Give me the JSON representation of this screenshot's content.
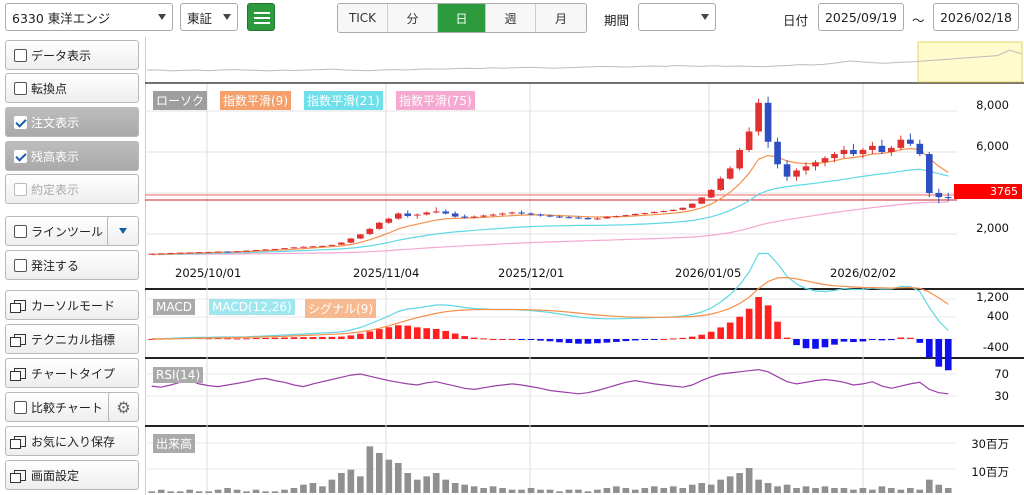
{
  "toolbar": {
    "stock_select": "6330 東洋エンジ",
    "market_select": "東証",
    "intervals": [
      {
        "label": "TICK",
        "active": false
      },
      {
        "label": "分",
        "active": false
      },
      {
        "label": "日",
        "active": true
      },
      {
        "label": "週",
        "active": false
      },
      {
        "label": "月",
        "active": false
      }
    ],
    "period_label": "期間",
    "period_value": "",
    "date_label": "日付",
    "date_from": "2025/09/19",
    "tilde": "～",
    "date_to": "2026/02/18",
    "accent_color": "#2e9a3e"
  },
  "sidebar": {
    "items": [
      {
        "label": "データ表示",
        "type": "checkbox",
        "checked": false
      },
      {
        "label": "転換点",
        "type": "checkbox",
        "checked": false
      },
      {
        "label": "注文表示",
        "type": "checkbox",
        "checked": true
      },
      {
        "label": "残高表示",
        "type": "checkbox",
        "checked": true
      },
      {
        "label": "約定表示",
        "type": "checkbox",
        "checked": false,
        "disabled": true
      },
      {
        "label": "ラインツール",
        "type": "checkbox",
        "checked": false
      },
      {
        "label": "発注する",
        "type": "checkbox",
        "checked": false
      },
      {
        "label": "カーソルモード",
        "type": "window"
      },
      {
        "label": "テクニカル指標",
        "type": "window"
      },
      {
        "label": "チャートタイプ",
        "type": "window"
      },
      {
        "label": "比較チャート",
        "type": "checkbox",
        "checked": false
      },
      {
        "label": "お気に入り保存",
        "type": "window"
      },
      {
        "label": "画面設定",
        "type": "window"
      }
    ]
  },
  "main_panel": {
    "legend": [
      "ローソク",
      "指数平滑(9)",
      "指数平滑(21)",
      "指数平滑(75)"
    ],
    "legend_colors": [
      "#9e9e9e",
      "#f5a06a",
      "#6fe0ea",
      "#f5a8d0"
    ],
    "y_ticks": [
      "8,000",
      "6,000",
      "2,000"
    ],
    "x_ticks": [
      "2025/10/01",
      "2025/11/04",
      "2025/12/01",
      "2026/01/05",
      "2026/02/02"
    ],
    "price_tag": "3765",
    "price_tag_color": "#ff0000"
  },
  "macd_panel": {
    "legend": [
      "MACD",
      "MACD(12,26)",
      "シグナル(9)"
    ],
    "y_ticks": [
      "1,200",
      "400",
      "-400"
    ]
  },
  "rsi_panel": {
    "legend": [
      "RSI(14)"
    ],
    "y_ticks": [
      "70",
      "30"
    ]
  },
  "volume_panel": {
    "legend": [
      "出来高"
    ],
    "y_ticks": [
      "30百万",
      "10百万"
    ]
  },
  "chart_data": {
    "type": "candlestick",
    "overview_line": [
      0.5,
      0.5,
      0.45,
      0.48,
      0.5,
      0.46,
      0.5,
      0.52,
      0.5,
      0.48,
      0.45,
      0.5,
      0.47,
      0.5,
      0.52,
      0.55,
      0.5,
      0.48,
      0.46,
      0.5,
      0.52,
      0.5,
      0.54,
      0.56,
      0.55,
      0.58,
      0.6,
      0.58,
      0.62,
      0.6,
      0.63,
      0.65,
      0.62,
      0.6,
      0.62,
      0.65,
      0.67,
      0.7,
      0.68,
      0.66,
      0.7,
      0.72,
      0.7,
      0.75,
      0.72,
      0.7,
      0.74,
      0.7,
      0.72,
      0.7,
      0.68,
      0.72,
      0.75,
      0.8,
      0.78,
      0.82,
      0.9,
      1.0,
      0.95,
      0.9,
      0.88,
      0.92,
      0.95,
      1.0,
      1.05,
      1.1,
      1.15,
      1.2,
      1.25,
      1.3,
      1.6,
      1.4
    ],
    "candles": [
      [
        1010,
        1040,
        990,
        1040
      ],
      [
        1040,
        1060,
        1030,
        1055
      ],
      [
        1060,
        1080,
        1050,
        1075
      ],
      [
        1080,
        1100,
        1060,
        1090
      ],
      [
        1090,
        1110,
        1070,
        1100
      ],
      [
        1100,
        1120,
        1085,
        1110
      ],
      [
        1110,
        1130,
        1100,
        1115
      ],
      [
        1115,
        1150,
        1110,
        1145
      ],
      [
        1145,
        1160,
        1120,
        1130
      ],
      [
        1130,
        1170,
        1120,
        1160
      ],
      [
        1160,
        1200,
        1150,
        1190
      ],
      [
        1190,
        1230,
        1180,
        1220
      ],
      [
        1220,
        1260,
        1200,
        1250
      ],
      [
        1250,
        1280,
        1230,
        1270
      ],
      [
        1270,
        1320,
        1260,
        1310
      ],
      [
        1310,
        1360,
        1300,
        1350
      ],
      [
        1350,
        1400,
        1340,
        1380
      ],
      [
        1380,
        1410,
        1350,
        1400
      ],
      [
        1400,
        1430,
        1380,
        1420
      ],
      [
        1420,
        1480,
        1400,
        1470
      ],
      [
        1480,
        1600,
        1470,
        1580
      ],
      [
        1580,
        1800,
        1550,
        1780
      ],
      [
        1780,
        2000,
        1750,
        1980
      ],
      [
        2000,
        2300,
        1950,
        2250
      ],
      [
        2250,
        2600,
        2200,
        2550
      ],
      [
        2550,
        2800,
        2500,
        2750
      ],
      [
        2750,
        3050,
        2700,
        3000
      ],
      [
        3000,
        3150,
        2800,
        2880
      ],
      [
        2900,
        3000,
        2750,
        2950
      ],
      [
        2950,
        3100,
        2900,
        3050
      ],
      [
        3050,
        3300,
        3000,
        3100
      ],
      [
        3100,
        3200,
        2950,
        3000
      ],
      [
        3000,
        3100,
        2800,
        2850
      ],
      [
        2850,
        2950,
        2750,
        2800
      ],
      [
        2800,
        2900,
        2750,
        2850
      ],
      [
        2850,
        2950,
        2800,
        2900
      ],
      [
        2900,
        3000,
        2850,
        2950
      ],
      [
        2950,
        3050,
        2900,
        3000
      ],
      [
        3000,
        3100,
        2950,
        3050
      ],
      [
        3050,
        3150,
        2950,
        3000
      ],
      [
        3000,
        3050,
        2900,
        2950
      ],
      [
        2950,
        3000,
        2850,
        2900
      ],
      [
        2900,
        2950,
        2820,
        2850
      ],
      [
        2850,
        2900,
        2780,
        2820
      ],
      [
        2820,
        2880,
        2760,
        2800
      ],
      [
        2800,
        2850,
        2740,
        2780
      ],
      [
        2780,
        2820,
        2700,
        2720
      ],
      [
        2720,
        2800,
        2680,
        2760
      ],
      [
        2760,
        2860,
        2740,
        2840
      ],
      [
        2840,
        2900,
        2800,
        2870
      ],
      [
        2870,
        2950,
        2850,
        2920
      ],
      [
        2920,
        3000,
        2900,
        2980
      ],
      [
        2980,
        3050,
        2950,
        3020
      ],
      [
        3020,
        3100,
        3000,
        3080
      ],
      [
        3080,
        3150,
        3050,
        3120
      ],
      [
        3120,
        3200,
        3100,
        3180
      ],
      [
        3180,
        3300,
        3150,
        3280
      ],
      [
        3280,
        3500,
        3250,
        3480
      ],
      [
        3480,
        3800,
        3450,
        3780
      ],
      [
        3780,
        4200,
        3750,
        4150
      ],
      [
        4150,
        4800,
        4100,
        4700
      ],
      [
        4700,
        5300,
        4650,
        5200
      ],
      [
        5200,
        6200,
        5100,
        6100
      ],
      [
        6100,
        7200,
        6000,
        7000
      ],
      [
        7000,
        8600,
        6800,
        8400
      ],
      [
        8400,
        8700,
        6200,
        6500
      ],
      [
        6500,
        6700,
        5200,
        5400
      ],
      [
        5400,
        5600,
        4600,
        4800
      ],
      [
        4800,
        5200,
        4600,
        5100
      ],
      [
        5100,
        5500,
        4900,
        5300
      ],
      [
        5300,
        5600,
        5100,
        5500
      ],
      [
        5500,
        5800,
        5300,
        5700
      ],
      [
        5700,
        6000,
        5500,
        5900
      ],
      [
        5900,
        6300,
        5700,
        6100
      ],
      [
        6100,
        6400,
        5800,
        5900
      ],
      [
        5900,
        6200,
        5700,
        6100
      ],
      [
        6100,
        6500,
        5900,
        6300
      ],
      [
        6300,
        6600,
        5900,
        6000
      ],
      [
        6000,
        6300,
        5800,
        6200
      ],
      [
        6200,
        6800,
        6100,
        6600
      ],
      [
        6600,
        6900,
        6300,
        6400
      ],
      [
        6400,
        6600,
        5800,
        5900
      ],
      [
        5900,
        6000,
        3800,
        4000
      ],
      [
        4000,
        4200,
        3500,
        3800
      ],
      [
        3800,
        4000,
        3600,
        3765
      ]
    ],
    "ema9": [
      1000,
      1015,
      1030,
      1050,
      1065,
      1080,
      1090,
      1105,
      1115,
      1125,
      1140,
      1160,
      1180,
      1205,
      1230,
      1260,
      1290,
      1320,
      1350,
      1380,
      1420,
      1490,
      1590,
      1720,
      1880,
      2050,
      2250,
      2380,
      2480,
      2580,
      2680,
      2740,
      2760,
      2770,
      2790,
      2810,
      2840,
      2870,
      2900,
      2920,
      2930,
      2930,
      2920,
      2900,
      2880,
      2860,
      2840,
      2830,
      2835,
      2845,
      2860,
      2885,
      2910,
      2940,
      2975,
      3015,
      3070,
      3150,
      3280,
      3460,
      3720,
      4040,
      4450,
      4960,
      5650,
      5830,
      5750,
      5560,
      5470,
      5430,
      5440,
      5490,
      5570,
      5680,
      5730,
      5800,
      5900,
      5930,
      5990,
      6110,
      6170,
      6110,
      5690,
      5300,
      5000
    ],
    "ema21": [
      1000,
      1007,
      1015,
      1025,
      1035,
      1045,
      1055,
      1065,
      1075,
      1085,
      1095,
      1105,
      1120,
      1135,
      1150,
      1170,
      1190,
      1210,
      1230,
      1250,
      1275,
      1310,
      1360,
      1420,
      1500,
      1590,
      1700,
      1780,
      1860,
      1930,
      2000,
      2060,
      2100,
      2140,
      2180,
      2210,
      2250,
      2280,
      2310,
      2340,
      2360,
      2380,
      2390,
      2400,
      2410,
      2420,
      2420,
      2420,
      2430,
      2440,
      2450,
      2470,
      2490,
      2510,
      2540,
      2570,
      2610,
      2660,
      2740,
      2840,
      2980,
      3150,
      3370,
      3620,
      3940,
      4120,
      4240,
      4310,
      4370,
      4420,
      4480,
      4540,
      4600,
      4670,
      4740,
      4810,
      4880,
      4930,
      4990,
      5060,
      5120,
      5160,
      5060,
      4940,
      4830
    ],
    "ema75": [
      1000,
      1002,
      1005,
      1008,
      1011,
      1014,
      1017,
      1020,
      1023,
      1026,
      1030,
      1034,
      1038,
      1043,
      1048,
      1054,
      1060,
      1066,
      1073,
      1080,
      1088,
      1100,
      1115,
      1135,
      1160,
      1190,
      1225,
      1255,
      1285,
      1315,
      1345,
      1375,
      1400,
      1425,
      1450,
      1470,
      1495,
      1520,
      1540,
      1560,
      1580,
      1600,
      1615,
      1630,
      1645,
      1660,
      1675,
      1690,
      1700,
      1715,
      1730,
      1745,
      1760,
      1775,
      1790,
      1810,
      1830,
      1855,
      1890,
      1935,
      1995,
      2070,
      2165,
      2280,
      2420,
      2530,
      2620,
      2700,
      2770,
      2840,
      2910,
      2980,
      3050,
      3110,
      3170,
      3230,
      3290,
      3340,
      3390,
      3440,
      3490,
      3530,
      3540,
      3550,
      3560
    ],
    "rsi": [
      48,
      46,
      50,
      55,
      58,
      52,
      49,
      47,
      50,
      53,
      56,
      60,
      62,
      58,
      55,
      50,
      47,
      52,
      56,
      60,
      64,
      68,
      70,
      66,
      62,
      58,
      55,
      52,
      50,
      54,
      56,
      52,
      48,
      44,
      42,
      45,
      48,
      50,
      52,
      50,
      47,
      44,
      40,
      38,
      36,
      34,
      36,
      40,
      45,
      50,
      55,
      58,
      55,
      52,
      50,
      48,
      46,
      50,
      58,
      65,
      70,
      72,
      74,
      76,
      78,
      74,
      65,
      56,
      52,
      55,
      58,
      60,
      58,
      55,
      50,
      52,
      56,
      48,
      44,
      48,
      52,
      55,
      42,
      36,
      34
    ],
    "volume": [
      1,
      2,
      1,
      1,
      2,
      1,
      1,
      2,
      3,
      2,
      1,
      2,
      1,
      1,
      2,
      3,
      5,
      6,
      4,
      8,
      12,
      14,
      10,
      28,
      24,
      20,
      18,
      12,
      8,
      10,
      12,
      8,
      6,
      5,
      4,
      3,
      4,
      3,
      2,
      2,
      3,
      2,
      2,
      1,
      2,
      2,
      1,
      2,
      3,
      4,
      3,
      2,
      3,
      4,
      3,
      4,
      3,
      5,
      6,
      5,
      8,
      10,
      12,
      15,
      8,
      6,
      4,
      5,
      3,
      4,
      3,
      4,
      3,
      3,
      2,
      3,
      2,
      4,
      3,
      2,
      3,
      2,
      8,
      5,
      3
    ],
    "unit_volume": "百万"
  }
}
